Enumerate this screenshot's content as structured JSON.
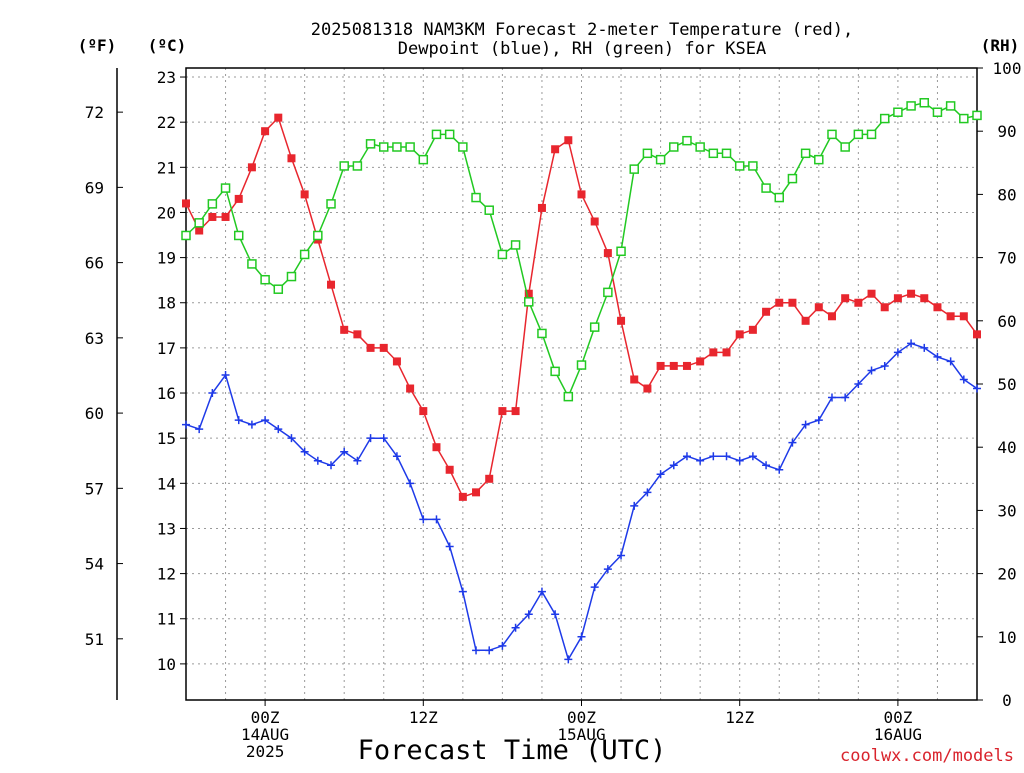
{
  "chart_data": {
    "type": "line",
    "title_lines": [
      "2025081318 NAM3KM Forecast 2-meter Temperature (red),",
      "Dewpoint (blue), RH (green) for KSEA"
    ],
    "xlabel": "Forecast Time (UTC)",
    "credit": "coolwx.com/models",
    "units": {
      "fahrenheit": "(ºF)",
      "celsius": "(ºC)",
      "rh": "(RH)"
    },
    "grid": true,
    "x_range_hours": [
      0,
      60
    ],
    "x_ticks": [
      {
        "hour": 6,
        "lines": [
          "00Z",
          "14AUG",
          "2025"
        ]
      },
      {
        "hour": 18,
        "lines": [
          "12Z",
          "",
          ""
        ]
      },
      {
        "hour": 30,
        "lines": [
          "00Z",
          "15AUG",
          ""
        ]
      },
      {
        "hour": 42,
        "lines": [
          "12Z",
          "",
          ""
        ]
      },
      {
        "hour": 54,
        "lines": [
          "00Z",
          "16AUG",
          ""
        ]
      }
    ],
    "celsius_axis": {
      "range": [
        9.2,
        23.2
      ],
      "ticks": [
        10,
        11,
        12,
        13,
        14,
        15,
        16,
        17,
        18,
        19,
        20,
        21,
        22,
        23
      ]
    },
    "fahrenheit_axis": {
      "ticks": [
        51,
        54,
        57,
        60,
        63,
        66,
        69,
        72
      ]
    },
    "rh_axis": {
      "range": [
        0,
        100
      ],
      "ticks": [
        0,
        10,
        20,
        30,
        40,
        50,
        60,
        70,
        80,
        90,
        100
      ]
    },
    "hours": [
      0,
      1,
      2,
      3,
      4,
      5,
      6,
      7,
      8,
      9,
      10,
      11,
      12,
      13,
      14,
      15,
      16,
      17,
      18,
      19,
      20,
      21,
      22,
      23,
      24,
      25,
      26,
      27,
      28,
      29,
      30,
      31,
      32,
      33,
      34,
      35,
      36,
      37,
      38,
      39,
      40,
      41,
      42,
      43,
      44,
      45,
      46,
      47,
      48,
      49,
      50,
      51,
      52,
      53,
      54,
      55,
      56,
      57,
      58,
      59,
      60
    ],
    "series": [
      {
        "key": "temperature",
        "axis": "celsius",
        "color": "#e8262e",
        "marker": "filled-square",
        "values": [
          20.2,
          19.6,
          19.9,
          19.9,
          20.3,
          21.0,
          21.8,
          22.1,
          21.2,
          20.4,
          19.4,
          18.4,
          17.4,
          17.3,
          17.0,
          17.0,
          16.7,
          16.1,
          15.6,
          14.8,
          14.3,
          13.7,
          13.8,
          14.1,
          15.6,
          15.6,
          18.2,
          20.1,
          21.4,
          21.6,
          20.4,
          19.8,
          19.1,
          17.6,
          16.3,
          16.1,
          16.6,
          16.6,
          16.6,
          16.7,
          16.9,
          16.9,
          17.3,
          17.4,
          17.8,
          18.0,
          18.0,
          17.6,
          17.9,
          17.7,
          18.1,
          18.0,
          18.2,
          17.9,
          18.1,
          18.2,
          18.1,
          17.9,
          17.7,
          17.7,
          17.3
        ]
      },
      {
        "key": "dewpoint",
        "axis": "celsius",
        "color": "#1e3ae8",
        "marker": "plus",
        "values": [
          15.3,
          15.2,
          16.0,
          16.4,
          15.4,
          15.3,
          15.4,
          15.2,
          15.0,
          14.7,
          14.5,
          14.4,
          14.7,
          14.5,
          15.0,
          15.0,
          14.6,
          14.0,
          13.2,
          13.2,
          12.6,
          11.6,
          10.3,
          10.3,
          10.4,
          10.8,
          11.1,
          11.6,
          11.1,
          10.1,
          10.6,
          11.7,
          12.1,
          12.4,
          13.5,
          13.8,
          14.2,
          14.4,
          14.6,
          14.5,
          14.6,
          14.6,
          14.5,
          14.6,
          14.4,
          14.3,
          14.9,
          15.3,
          15.4,
          15.9,
          15.9,
          16.2,
          16.5,
          16.6,
          16.9,
          17.1,
          17.0,
          16.8,
          16.7,
          16.3,
          16.1
        ]
      },
      {
        "key": "rh",
        "axis": "rh",
        "color": "#22c922",
        "marker": "open-square",
        "values": [
          73.5,
          75.5,
          78.5,
          81,
          73.5,
          69,
          66.5,
          65,
          67,
          70.5,
          73.5,
          78.5,
          84.5,
          84.5,
          88,
          87.5,
          87.5,
          87.5,
          85.5,
          89.5,
          89.5,
          87.5,
          79.5,
          77.5,
          70.5,
          72,
          63,
          58,
          52,
          48,
          53,
          59,
          64.5,
          71,
          84,
          86.5,
          85.5,
          87.5,
          88.5,
          87.5,
          86.5,
          86.5,
          84.5,
          84.5,
          81,
          79.5,
          82.5,
          86.5,
          85.5,
          89.5,
          87.5,
          89.5,
          89.5,
          92,
          93,
          94,
          94.5,
          93,
          94,
          92,
          92.5
        ]
      }
    ]
  }
}
